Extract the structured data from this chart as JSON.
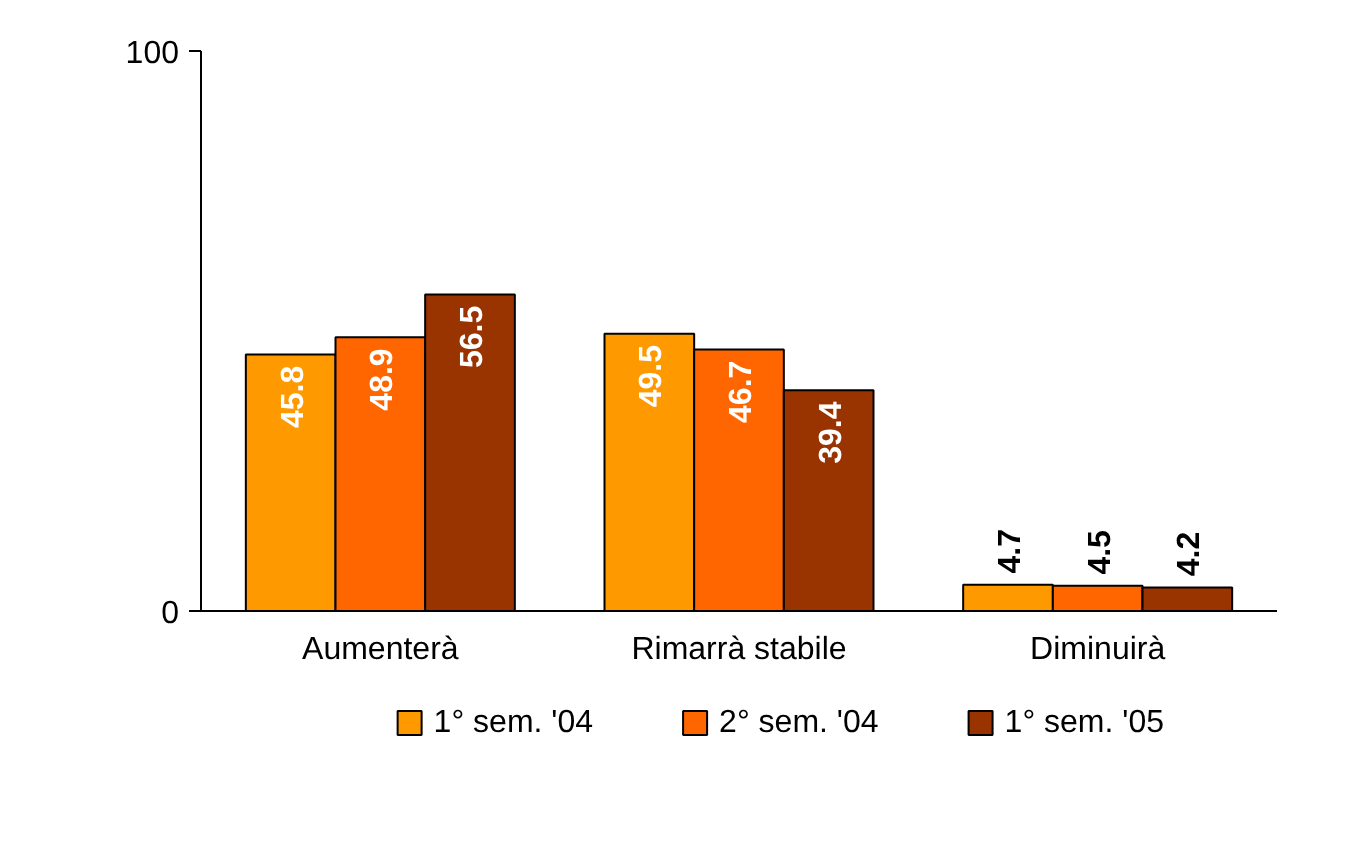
{
  "chart_data": {
    "type": "bar",
    "categories": [
      "Aumenterà",
      "Rimarrà stabile",
      "Diminuirà"
    ],
    "series": [
      {
        "name": "1° sem. '04",
        "color": "#ff9900",
        "values": [
          45.8,
          49.5,
          4.7
        ]
      },
      {
        "name": "2° sem. '04",
        "color": "#ff6600",
        "values": [
          48.9,
          46.7,
          4.5
        ]
      },
      {
        "name": "1° sem. '05",
        "color": "#993300",
        "values": [
          56.5,
          39.4,
          4.2
        ]
      }
    ],
    "ylim": [
      0,
      100
    ],
    "yticks": [
      0,
      100
    ],
    "grid": false,
    "legend": "bottom",
    "data_labels": true
  }
}
